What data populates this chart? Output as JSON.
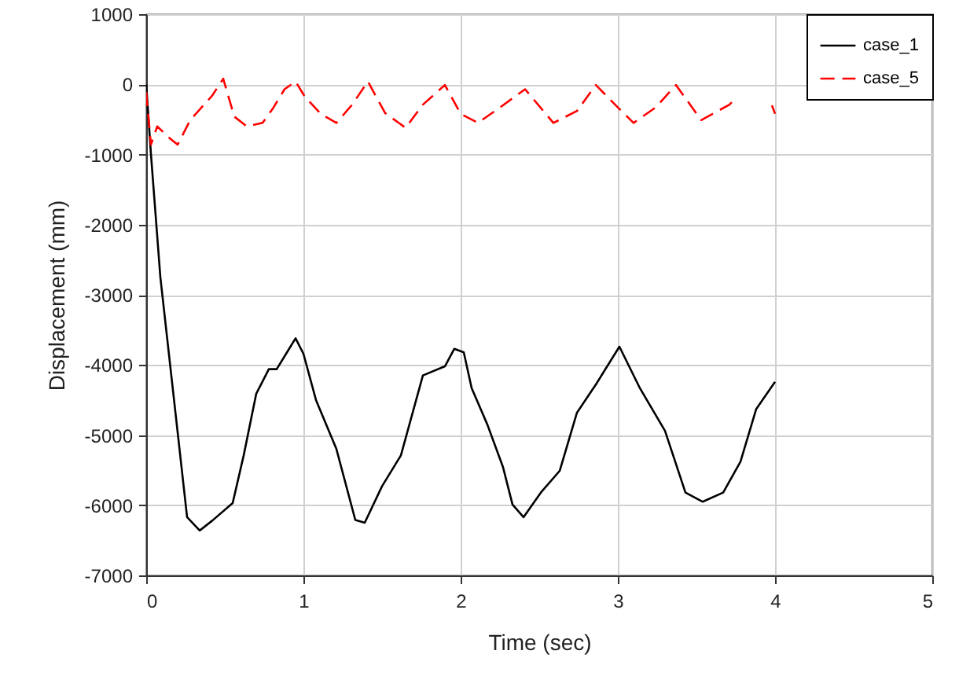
{
  "chart_data": {
    "type": "line",
    "xlabel": "Time (sec)",
    "ylabel": "Displacement (mm)",
    "xlim": [
      0,
      5
    ],
    "xticks": [
      0,
      1,
      2,
      3,
      4,
      5
    ],
    "ylim": [
      -7000,
      1000
    ],
    "yticks": [
      -7000,
      -6000,
      -5000,
      -4000,
      -3000,
      -2000,
      -1000,
      0,
      1000
    ],
    "grid": true,
    "legend": "top right",
    "marker": "none",
    "series": [
      {
        "name": "case_1",
        "color": "#000000",
        "line_style": "solid",
        "x": [
          0,
          0.03,
          0.09,
          0.19,
          0.26,
          0.34,
          0.42,
          0.55,
          0.62,
          0.7,
          0.78,
          0.83,
          0.89,
          0.95,
          1.0,
          1.08,
          1.21,
          1.33,
          1.39,
          1.5,
          1.62,
          1.76,
          1.9,
          1.96,
          2.02,
          2.07,
          2.17,
          2.27,
          2.33,
          2.4,
          2.51,
          2.63,
          2.74,
          2.86,
          3.01,
          3.14,
          3.3,
          3.43,
          3.54,
          3.67,
          3.78,
          3.88,
          4.0
        ],
        "values": [
          0,
          -990,
          -2750,
          -4760,
          -6170,
          -6360,
          -6220,
          -5970,
          -5290,
          -4410,
          -4060,
          -4060,
          -3840,
          -3620,
          -3840,
          -4500,
          -5200,
          -6210,
          -6250,
          -5730,
          -5290,
          -4150,
          -4020,
          -3770,
          -3820,
          -4330,
          -4850,
          -5460,
          -5990,
          -6170,
          -5820,
          -5510,
          -4680,
          -4280,
          -3740,
          -4330,
          -4940,
          -5820,
          -5950,
          -5820,
          -5380,
          -4630,
          -4240
        ]
      },
      {
        "name": "case_5",
        "color": "#ff0000",
        "line_style": "dashed",
        "x": [
          0,
          0.03,
          0.07,
          0.15,
          0.2,
          0.28,
          0.42,
          0.49,
          0.56,
          0.64,
          0.74,
          0.81,
          0.88,
          0.95,
          1.01,
          1.11,
          1.21,
          1.31,
          1.41,
          1.52,
          1.65,
          1.76,
          1.9,
          2.0,
          2.11,
          2.25,
          2.41,
          2.59,
          2.74,
          2.86,
          3.0,
          3.1,
          3.24,
          3.37,
          3.53,
          3.71,
          3.75,
          3.85,
          3.98,
          4.0
        ],
        "values": [
          -110,
          -860,
          -600,
          -770,
          -860,
          -510,
          -160,
          80,
          -460,
          -600,
          -550,
          -330,
          -70,
          40,
          -180,
          -420,
          -550,
          -290,
          40,
          -410,
          -620,
          -290,
          -10,
          -420,
          -550,
          -330,
          -70,
          -550,
          -380,
          -10,
          -330,
          -550,
          -330,
          -10,
          -510,
          -290,
          -200,
          null,
          -300,
          -420
        ]
      }
    ]
  }
}
